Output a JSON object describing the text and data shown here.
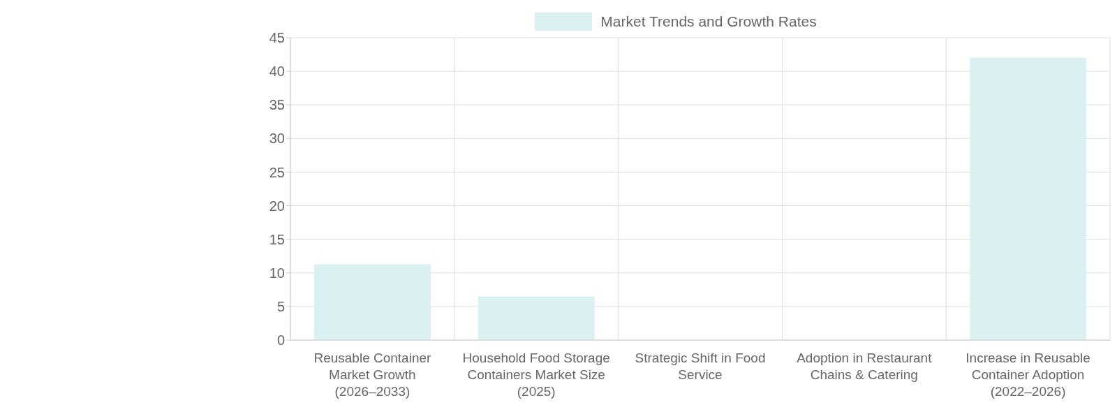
{
  "chart_data": {
    "type": "bar",
    "categories": [
      "Reusable Container Market Growth (2026–2033)",
      "Household Food Storage Containers Market Size (2025)",
      "Strategic Shift in Food Service",
      "Adoption in Restaurant Chains & Catering",
      "Increase in Reusable Container Adoption (2022–2026)"
    ],
    "series": [
      {
        "name": "Market Trends and Growth Rates",
        "color": "#daf0f1",
        "values": [
          11.3,
          6.5,
          0,
          0,
          42
        ]
      }
    ],
    "ylim": [
      0,
      45
    ],
    "yticks": [
      0,
      5,
      10,
      15,
      20,
      25,
      30,
      35,
      40,
      45
    ],
    "grid": true,
    "legend": "top"
  }
}
